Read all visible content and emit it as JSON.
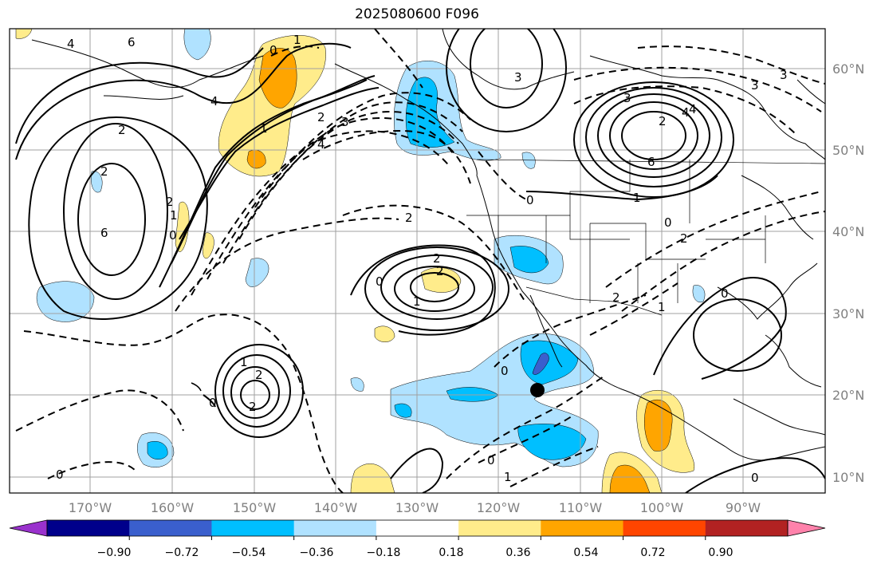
{
  "title": "2025080600 F096",
  "lon_labels": [
    "170°W",
    "160°W",
    "150°W",
    "140°W",
    "130°W",
    "120°W",
    "110°W",
    "100°W",
    "90°W"
  ],
  "lat_labels": [
    "60°N",
    "50°N",
    "40°N",
    "30°N",
    "20°N",
    "10°N"
  ],
  "colorbar": {
    "ticks": [
      "−0.90",
      "−0.72",
      "−0.54",
      "−0.36",
      "−0.18",
      "0.18",
      "0.36",
      "0.54",
      "0.72",
      "0.90"
    ],
    "colors": [
      "#9a32cd",
      "#00008b",
      "#3a5fcd",
      "#00bfff",
      "#b0e2ff",
      "#ffffff",
      "#ffec8b",
      "#ffa500",
      "#ff4500",
      "#b22222",
      "#ff82ab"
    ]
  },
  "shading_colors": {
    "neg_light": "#b0e2ff",
    "neg_mid": "#00bfff",
    "neg_dark": "#3a5fcd",
    "pos_light": "#ffec8b",
    "pos_mid": "#ffa500"
  },
  "contour_labels": [
    "4",
    "6",
    "0",
    "1",
    "4",
    "2",
    "3",
    "1",
    "4",
    "2",
    "3",
    "2",
    "4",
    "3",
    "3",
    "2",
    "6",
    "1",
    "0",
    "2",
    "6",
    "1",
    "4",
    "0",
    "3",
    "0",
    "2",
    "2",
    "0",
    "1",
    "2",
    "2",
    "0",
    "2",
    "1",
    "0",
    "0",
    "1",
    "0",
    "0",
    "1",
    "0"
  ],
  "marker": "black-dot"
}
